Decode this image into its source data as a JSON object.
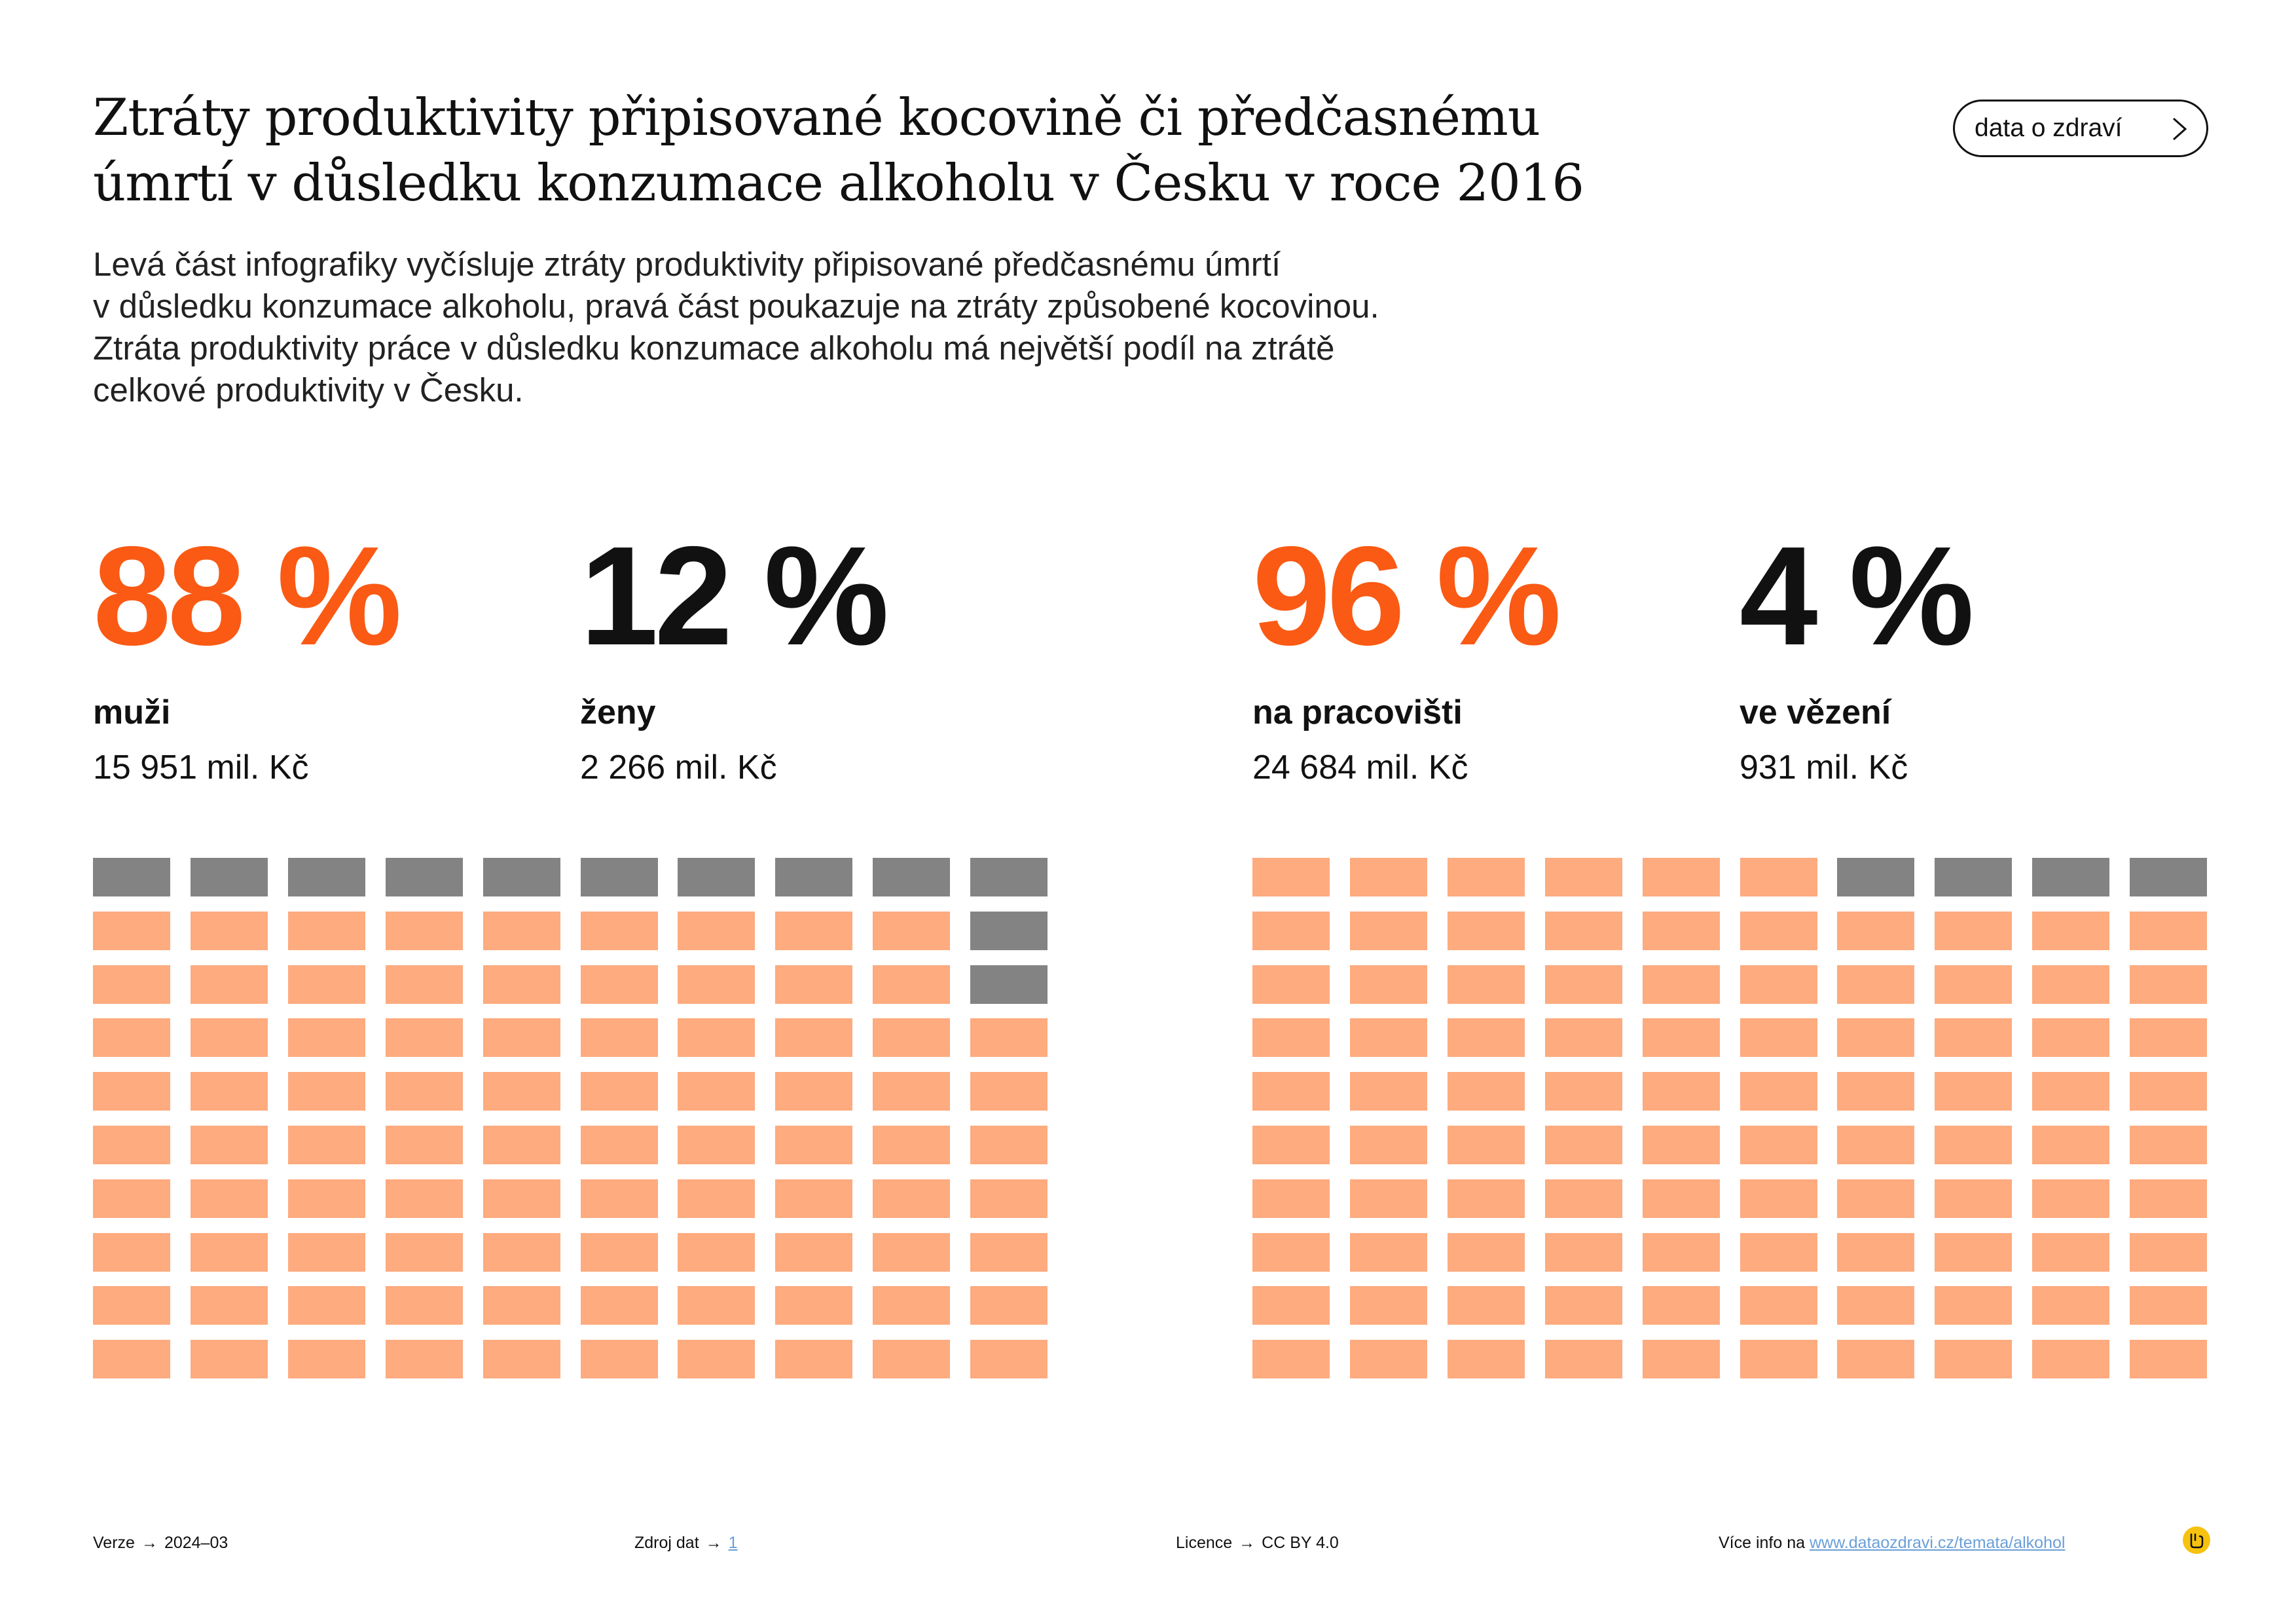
{
  "header": {
    "title_lines": [
      "Ztráty produktivity připisované kocovině či předčasnému",
      "úmrtí v důsledku konzumace alkoholu v Česku v roce 2016"
    ],
    "description_lines": [
      "Levá část infografiky vyčísluje ztráty produktivity připisované předčasnému úmrtí",
      "v důsledku konzumace alkoholu, pravá část poukazuje na ztráty způsobené kocovinou.",
      "Ztráta produktivity práce v důsledku konzumace alkoholu má největší podíl na ztrátě",
      "celkové produktivity v Česku."
    ],
    "nav_button_label": "data o zdraví",
    "nav_icon": "chevron-right-icon"
  },
  "colors": {
    "accent": "#fa5a14",
    "waffle_primary": "#fdab7f",
    "waffle_secondary": "#838383",
    "text": "#111111",
    "link": "#6a9fd8",
    "badge": "#f6c20f"
  },
  "chart_data": [
    {
      "type": "waffle",
      "grid": {
        "rows": 10,
        "cols": 10
      },
      "series": [
        {
          "name": "muži",
          "percent_label": "88 %",
          "value_label": "15 951 mil. Kč",
          "percent": 88
        },
        {
          "name": "ženy",
          "percent_label": "12 %",
          "value_label": "2 266 mil. Kč",
          "percent": 12
        }
      ]
    },
    {
      "type": "waffle",
      "grid": {
        "rows": 10,
        "cols": 10
      },
      "series": [
        {
          "name": "na pracovišti",
          "percent_label": "96 %",
          "value_label": "24 684 mil. Kč",
          "percent": 96
        },
        {
          "name": "ve vězení",
          "percent_label": "4 %",
          "value_label": "931 mil. Kč",
          "percent": 4
        }
      ]
    }
  ],
  "footer": {
    "version_label": "Verze",
    "version_value": "2024–03",
    "source_label": "Zdroj dat",
    "source_value": "1",
    "license_label": "Licence",
    "license_value": "CC BY 4.0",
    "more_info_label": "Více info na",
    "more_info_link": "www.dataozdravi.cz/temata/alkohol",
    "arrow": "→"
  }
}
